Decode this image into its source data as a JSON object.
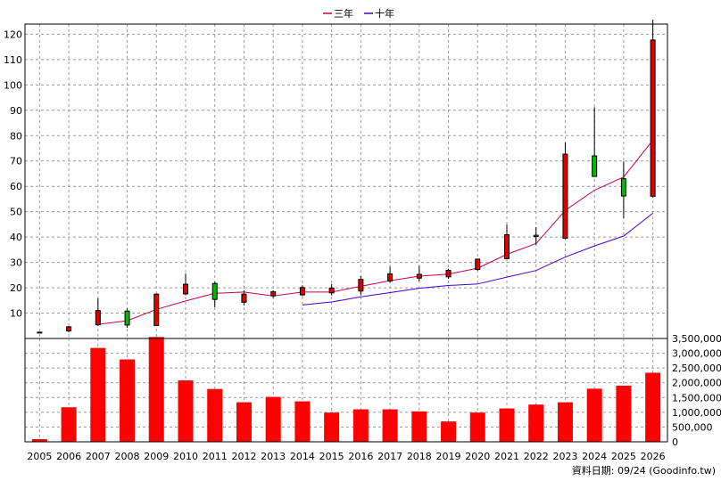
{
  "chart_data": {
    "type": "candlestick",
    "legend": {
      "position": "top-center",
      "entries": [
        {
          "name": "三年",
          "color": "#cc0044"
        },
        {
          "name": "十年",
          "color": "#4400cc"
        }
      ]
    },
    "categories": [
      "2005",
      "2006",
      "2007",
      "2008",
      "2009",
      "2010",
      "2011",
      "2012",
      "2013",
      "2014",
      "2015",
      "2016",
      "2017",
      "2018",
      "2019",
      "2020",
      "2021",
      "2022",
      "2023",
      "2024",
      "2025",
      "2026"
    ],
    "price_axis": {
      "ticks": [
        10,
        20,
        30,
        40,
        50,
        60,
        70,
        80,
        90,
        100,
        110,
        120
      ],
      "range": [
        0,
        124
      ],
      "grid": true
    },
    "volume_axis": {
      "ticks": [
        "0",
        "500,000",
        "1,000,000",
        "1,500,000",
        "2,000,000",
        "2,500,000",
        "3,000,000",
        "3,500,000"
      ],
      "tick_values": [
        0,
        500000,
        1000000,
        1500000,
        2000000,
        2500000,
        3000000,
        3500000
      ],
      "range": [
        0,
        3500000
      ],
      "grid": true
    },
    "candles": [
      {
        "open": 2.5,
        "close": 2.3,
        "high": 2.6,
        "low": 2.2
      },
      {
        "open": 3.0,
        "close": 4.6,
        "high": 4.9,
        "low": 2.4
      },
      {
        "open": 5.4,
        "close": 11.0,
        "high": 15.8,
        "low": 4.9
      },
      {
        "open": 10.8,
        "close": 5.3,
        "high": 11.8,
        "low": 4.2
      },
      {
        "open": 5.1,
        "close": 17.5,
        "high": 17.8,
        "low": 5.0
      },
      {
        "open": 17.6,
        "close": 21.4,
        "high": 25.6,
        "low": 17.0
      },
      {
        "open": 21.7,
        "close": 15.4,
        "high": 22.3,
        "low": 12.3
      },
      {
        "open": 14.3,
        "close": 17.5,
        "high": 19.0,
        "low": 13.0
      },
      {
        "open": 16.8,
        "close": 18.4,
        "high": 19.0,
        "low": 16.0
      },
      {
        "open": 17.2,
        "close": 20.1,
        "high": 21.0,
        "low": 16.7
      },
      {
        "open": 18.0,
        "close": 19.9,
        "high": 21.5,
        "low": 17.0
      },
      {
        "open": 18.7,
        "close": 23.3,
        "high": 24.6,
        "low": 17.0
      },
      {
        "open": 22.7,
        "close": 25.5,
        "high": 28.3,
        "low": 22.0
      },
      {
        "open": 23.8,
        "close": 25.3,
        "high": 28.6,
        "low": 22.5
      },
      {
        "open": 24.3,
        "close": 26.9,
        "high": 27.5,
        "low": 23.5
      },
      {
        "open": 27.2,
        "close": 31.3,
        "high": 31.4,
        "low": 26.8
      },
      {
        "open": 31.5,
        "close": 40.9,
        "high": 44.9,
        "low": 31.4
      },
      {
        "open": 40.7,
        "close": 40.2,
        "high": 43.9,
        "low": 37.0
      },
      {
        "open": 39.5,
        "close": 72.7,
        "high": 77.3,
        "low": 39.3
      },
      {
        "open": 72.0,
        "close": 63.9,
        "high": 91.2,
        "low": 63.9
      },
      {
        "open": 63.0,
        "close": 56.2,
        "high": 69.8,
        "low": 47.5
      },
      {
        "open": 56.1,
        "close": 117.7,
        "high": 125.7,
        "low": 55.6
      }
    ],
    "series": [
      {
        "name": "三年",
        "values": [
          null,
          null,
          5.6,
          7.0,
          11.5,
          14.8,
          17.8,
          18.3,
          16.8,
          18.3,
          18.3,
          20.6,
          22.8,
          24.6,
          25.4,
          27.7,
          33.2,
          37.4,
          50.5,
          58.5,
          63.7,
          78.2
        ]
      },
      {
        "name": "十年",
        "values": [
          null,
          null,
          null,
          null,
          null,
          null,
          null,
          null,
          null,
          13.2,
          14.4,
          16.4,
          18.1,
          19.8,
          20.9,
          21.5,
          24.2,
          26.8,
          32.1,
          36.5,
          40.4,
          49.4
        ]
      }
    ],
    "volume": [
      90000,
      1170000,
      3180000,
      2790000,
      3550000,
      2080000,
      1790000,
      1340000,
      1520000,
      1370000,
      990000,
      1100000,
      1100000,
      1030000,
      690000,
      990000,
      1130000,
      1260000,
      1340000,
      1800000,
      1900000,
      2340000
    ],
    "colors": {
      "up": "#dd0000",
      "down": "#00bb00",
      "volume": "#ff0000",
      "grid": "#9a9a9a"
    }
  },
  "footer": "資料日期: 09/24  (Goodinfo.tw)"
}
